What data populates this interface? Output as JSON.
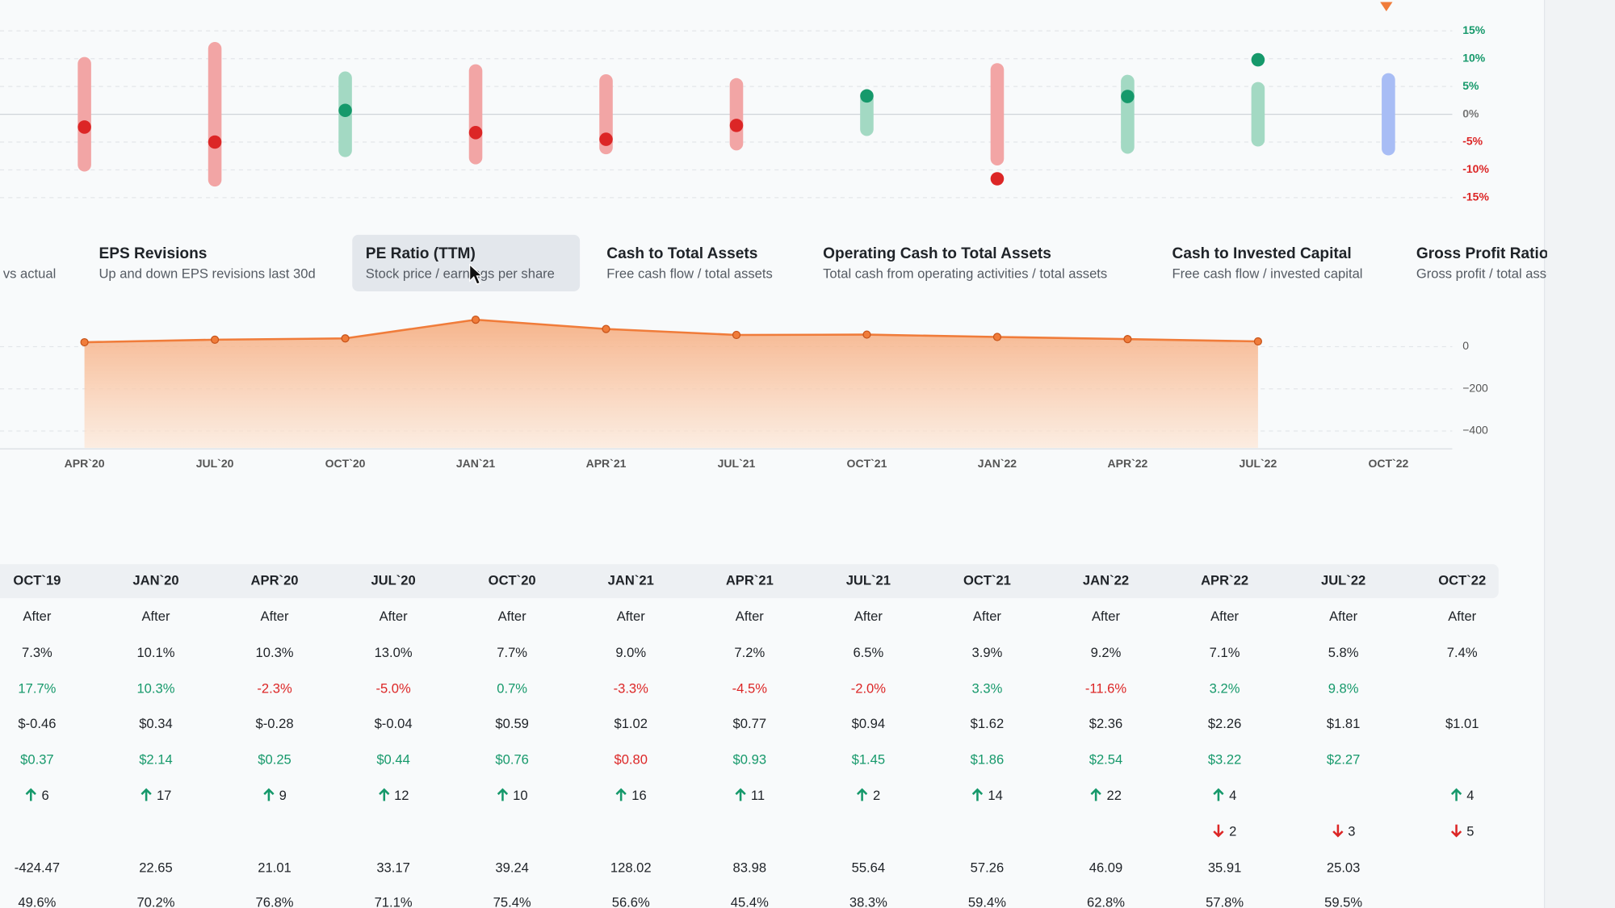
{
  "top_chart": {
    "type": "range",
    "ylim": [
      -15,
      15
    ],
    "yticks": [
      {
        "value": 15,
        "label": "15%"
      },
      {
        "value": 10,
        "label": "10%"
      },
      {
        "value": 5,
        "label": "5%"
      },
      {
        "value": 0,
        "label": "0%"
      },
      {
        "value": -5,
        "label": "-5%"
      },
      {
        "value": -10,
        "label": "-10%"
      },
      {
        "value": -15,
        "label": "-15%"
      }
    ],
    "ranges": [
      10.3,
      13.0,
      7.7,
      9.0,
      7.2,
      6.5,
      3.9,
      9.2,
      7.1,
      5.8,
      7.4
    ],
    "points": [
      -2.3,
      -5.0,
      0.7,
      -3.3,
      -4.5,
      -2.0,
      3.3,
      -11.6,
      3.2,
      9.8,
      null
    ],
    "range_colors": [
      "#f2a5a5",
      "#f2a5a5",
      "#a3d9c3",
      "#f2a5a5",
      "#f2a5a5",
      "#f2a5a5",
      "#a3d9c3",
      "#f2a5a5",
      "#a3d9c3",
      "#a3d9c3",
      "#a8bdf5"
    ],
    "point_colors": [
      "#dc2626",
      "#dc2626",
      "#16996b",
      "#dc2626",
      "#dc2626",
      "#dc2626",
      "#16996b",
      "#dc2626",
      "#16996b",
      "#16996b",
      null
    ],
    "tick_colors": [
      "#16996b",
      "#16996b",
      "#16996b",
      "#777777",
      "#dc2626",
      "#dc2626",
      "#dc2626"
    ]
  },
  "tabs": [
    {
      "title": null,
      "subtitle": "vs actual"
    },
    {
      "title": "EPS Revisions",
      "subtitle": "Up and down EPS revisions last 30d"
    },
    {
      "title": "PE Ratio (TTM)",
      "subtitle": "Stock price / earnings per share"
    },
    {
      "title": "Cash to Total Assets",
      "subtitle": "Free cash flow / total assets"
    },
    {
      "title": "Operating Cash to Total Assets",
      "subtitle": "Total cash from operating activities / total assets"
    },
    {
      "title": "Cash to Invested Capital",
      "subtitle": "Free cash flow / invested capital"
    },
    {
      "title": "Gross Profit Ratio",
      "subtitle": "Gross profit / total assets"
    }
  ],
  "selected_tab": 2,
  "area_chart": {
    "type": "area",
    "categories": [
      "APR`20",
      "JUL`20",
      "OCT`20",
      "JAN`21",
      "APR`21",
      "JUL`21",
      "OCT`21",
      "JAN`22",
      "APR`22",
      "JUL`22",
      "OCT`22"
    ],
    "values": [
      21.01,
      33.17,
      39.24,
      128.02,
      83.98,
      55.64,
      57.26,
      46.09,
      35.91,
      25.03,
      null
    ],
    "color": "#f07c3a",
    "ylim": [
      -480,
      160
    ],
    "yticks": [
      0,
      {
        "value": -200,
        "label": "−200"
      },
      {
        "value": -400,
        "label": "−400"
      }
    ]
  },
  "table": {
    "header": [
      "OCT`19",
      "JAN`20",
      "APR`20",
      "JUL`20",
      "OCT`20",
      "JAN`21",
      "APR`21",
      "JUL`21",
      "OCT`21",
      "JAN`22",
      "APR`22",
      "JUL`22",
      "OCT`22"
    ],
    "rows": [
      {
        "cells": [
          "After",
          "After",
          "After",
          "After",
          "After",
          "After",
          "After",
          "After",
          "After",
          "After",
          "After",
          "After",
          "After"
        ]
      },
      {
        "cells": [
          "7.3%",
          "10.1%",
          "10.3%",
          "13.0%",
          "7.7%",
          "9.0%",
          "7.2%",
          "6.5%",
          "3.9%",
          "9.2%",
          "7.1%",
          "5.8%",
          "7.4%"
        ]
      },
      {
        "cells": [
          "17.7%",
          "10.3%",
          "-2.3%",
          "-5.0%",
          "0.7%",
          "-3.3%",
          "-4.5%",
          "-2.0%",
          "3.3%",
          "-11.6%",
          "3.2%",
          "9.8%",
          null
        ],
        "colors": [
          "#16996b",
          "#16996b",
          "#dc2626",
          "#dc2626",
          "#16996b",
          "#dc2626",
          "#dc2626",
          "#dc2626",
          "#16996b",
          "#dc2626",
          "#16996b",
          "#16996b",
          null
        ]
      },
      {
        "cells": [
          "$-0.46",
          "$0.34",
          "$-0.28",
          "$-0.04",
          "$0.59",
          "$1.02",
          "$0.77",
          "$0.94",
          "$1.62",
          "$2.36",
          "$2.26",
          "$1.81",
          "$1.01"
        ]
      },
      {
        "cells": [
          "$0.37",
          "$2.14",
          "$0.25",
          "$0.44",
          "$0.76",
          "$0.80",
          "$0.93",
          "$1.45",
          "$1.86",
          "$2.54",
          "$3.22",
          "$2.27",
          null
        ],
        "colors": [
          "#16996b",
          "#16996b",
          "#16996b",
          "#16996b",
          "#16996b",
          "#dc2626",
          "#16996b",
          "#16996b",
          "#16996b",
          "#16996b",
          "#16996b",
          "#16996b",
          null
        ]
      },
      {
        "cells": [
          "6",
          "17",
          "9",
          "12",
          "10",
          "16",
          "11",
          "2",
          "14",
          "22",
          "4",
          null,
          "4"
        ],
        "icon": "up"
      },
      {
        "cells": [
          null,
          null,
          null,
          null,
          null,
          null,
          null,
          null,
          null,
          null,
          "2",
          "3",
          "5"
        ],
        "icon": "down"
      },
      {
        "cells": [
          "-424.47",
          "22.65",
          "21.01",
          "33.17",
          "39.24",
          "128.02",
          "83.98",
          "55.64",
          "57.26",
          "46.09",
          "35.91",
          "25.03",
          null
        ]
      },
      {
        "cells": [
          "49.6%",
          "70.2%",
          "76.8%",
          "71.1%",
          "75.4%",
          "56.6%",
          "45.4%",
          "38.3%",
          "59.4%",
          "62.8%",
          "57.8%",
          "59.5%",
          null
        ]
      }
    ]
  }
}
